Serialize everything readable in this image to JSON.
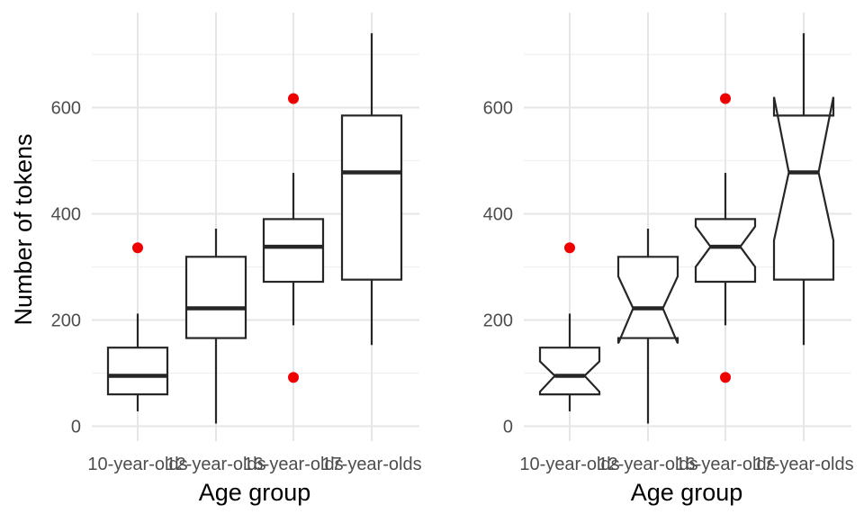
{
  "chart_data": [
    {
      "type": "boxplot",
      "notched": false,
      "xlabel": "Age group",
      "ylabel": "Number of tokens",
      "ylim": [
        -20,
        745
      ],
      "yticks": [
        0,
        200,
        400,
        600
      ],
      "grid": true,
      "categories": [
        "10-year-olds",
        "12-year-olds",
        "16-year-olds",
        "17-year-olds"
      ],
      "boxes": [
        {
          "whisker_low": 28,
          "q1": 60,
          "median": 95,
          "q3": 148,
          "whisker_high": 212,
          "outliers": [
            336
          ]
        },
        {
          "whisker_low": 5,
          "q1": 166,
          "median": 222,
          "q3": 319,
          "whisker_high": 372,
          "outliers": []
        },
        {
          "whisker_low": 190,
          "q1": 272,
          "median": 338,
          "q3": 390,
          "whisker_high": 477,
          "outliers": [
            617,
            92
          ]
        },
        {
          "whisker_low": 153,
          "q1": 276,
          "median": 478,
          "q3": 585,
          "whisker_high": 740,
          "outliers": []
        }
      ],
      "colors": {
        "box": "#262626",
        "outlier": "#ee0000",
        "grid": "#e6e6e6",
        "tick": "#4d4d4d"
      }
    },
    {
      "type": "boxplot",
      "notched": true,
      "xlabel": "Age group",
      "ylabel": "",
      "ylim": [
        -20,
        745
      ],
      "yticks": [
        0,
        200,
        400,
        600
      ],
      "grid": true,
      "categories": [
        "10-year-olds",
        "12-year-olds",
        "16-year-olds",
        "17-year-olds"
      ],
      "boxes": [
        {
          "whisker_low": 28,
          "q1": 60,
          "median": 95,
          "q3": 148,
          "whisker_high": 212,
          "notch_low": 65,
          "notch_high": 122,
          "outliers": [
            336
          ]
        },
        {
          "whisker_low": 5,
          "q1": 166,
          "median": 222,
          "q3": 319,
          "whisker_high": 372,
          "notch_low": 156,
          "notch_high": 282,
          "outliers": []
        },
        {
          "whisker_low": 190,
          "q1": 272,
          "median": 338,
          "q3": 390,
          "whisker_high": 477,
          "notch_low": 300,
          "notch_high": 376,
          "outliers": [
            617,
            92
          ]
        },
        {
          "whisker_low": 153,
          "q1": 276,
          "median": 478,
          "q3": 585,
          "whisker_high": 740,
          "notch_low": 350,
          "notch_high": 620,
          "outliers": []
        }
      ],
      "colors": {
        "box": "#262626",
        "outlier": "#ee0000",
        "grid": "#e6e6e6",
        "tick": "#4d4d4d"
      }
    }
  ]
}
